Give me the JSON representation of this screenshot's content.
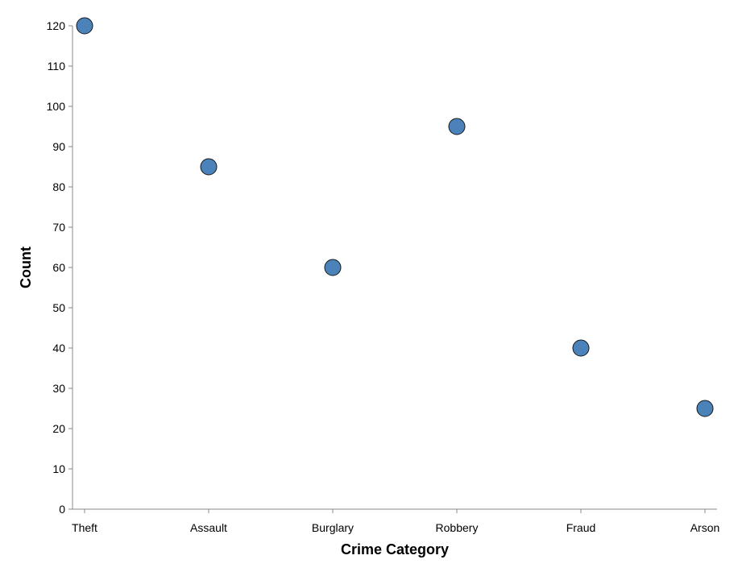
{
  "chart_data": {
    "type": "scatter",
    "title": "",
    "xlabel": "Crime Category",
    "ylabel": "Count",
    "categories": [
      "Theft",
      "Assault",
      "Burglary",
      "Robbery",
      "Fraud",
      "Arson"
    ],
    "series": [
      {
        "values": [
          120,
          85,
          60,
          95,
          40,
          25
        ]
      }
    ],
    "ylim": [
      0,
      120
    ],
    "yticks": [
      0,
      10,
      20,
      30,
      40,
      50,
      60,
      70,
      80,
      90,
      100,
      110,
      120
    ],
    "grid": false,
    "legend": "none",
    "colors": {
      "point_fill": "#4a82b9",
      "point_stroke": "#1a1a1a",
      "axis": "#888888"
    }
  }
}
